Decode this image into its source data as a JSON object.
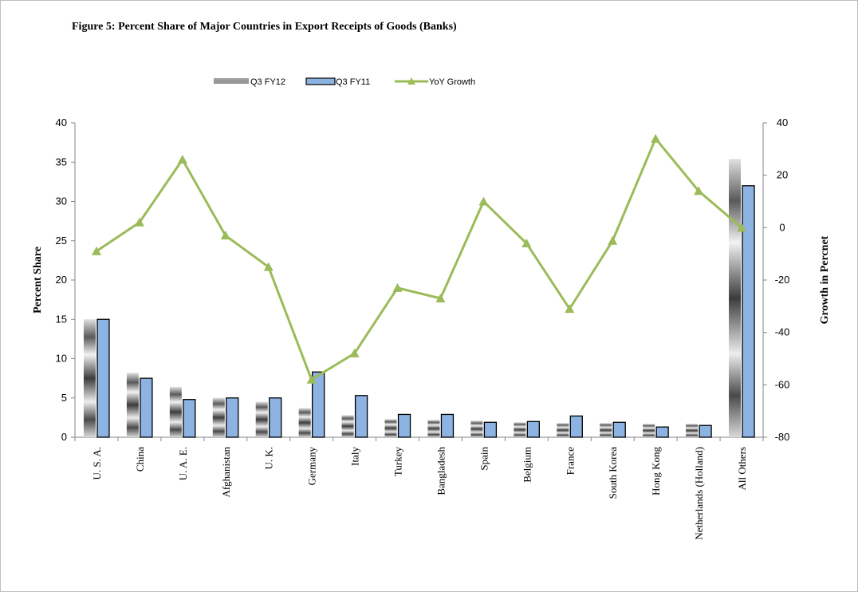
{
  "chart_data": {
    "type": "bar",
    "title": "Figure 5: Percent Share of Major Countries in Export Receipts of Goods  (Banks)",
    "ylabel": "Percent Share",
    "y2label": "Growth in Percnet",
    "ylim": [
      0,
      40
    ],
    "y2lim": [
      -80,
      40
    ],
    "yticks": [
      "0",
      "5",
      "10",
      "15",
      "20",
      "25",
      "30",
      "35",
      "40"
    ],
    "y2ticks": [
      "-80",
      "-60",
      "-40",
      "-20",
      "0",
      "20",
      "40"
    ],
    "legend_position": "top",
    "categories": [
      "U. S. A.",
      "China",
      "U. A. E.",
      "Afghanistan",
      "U. K.",
      "Germany",
      "Italy",
      "Turkey",
      "Bangladesh",
      "Spain",
      "Belgium",
      "France",
      "South Korea",
      "Hong Kong",
      "Netherlands (Holland)",
      "All Others"
    ],
    "series": [
      {
        "name": "Q3 FY12",
        "kind": "bar",
        "axis": "left",
        "color": "#a6a6a6",
        "values": [
          15.0,
          8.2,
          6.4,
          5.0,
          4.5,
          3.7,
          2.8,
          2.3,
          2.2,
          2.1,
          1.9,
          1.8,
          1.8,
          1.7,
          1.7,
          35.4
        ]
      },
      {
        "name": "Q3 FY11",
        "kind": "bar",
        "axis": "left",
        "color": "#8db3e2",
        "values": [
          15.0,
          7.5,
          4.8,
          5.0,
          5.0,
          8.3,
          5.3,
          2.9,
          2.9,
          1.9,
          2.0,
          2.7,
          1.9,
          1.3,
          1.5,
          32.0
        ]
      },
      {
        "name": "YoY Growth",
        "kind": "line",
        "axis": "right",
        "color": "#9bbb59",
        "values": [
          -9,
          2,
          26,
          -3,
          -15,
          -58,
          -48,
          -23,
          -27,
          10,
          -6,
          -31,
          -5,
          34,
          14,
          0
        ]
      }
    ]
  }
}
